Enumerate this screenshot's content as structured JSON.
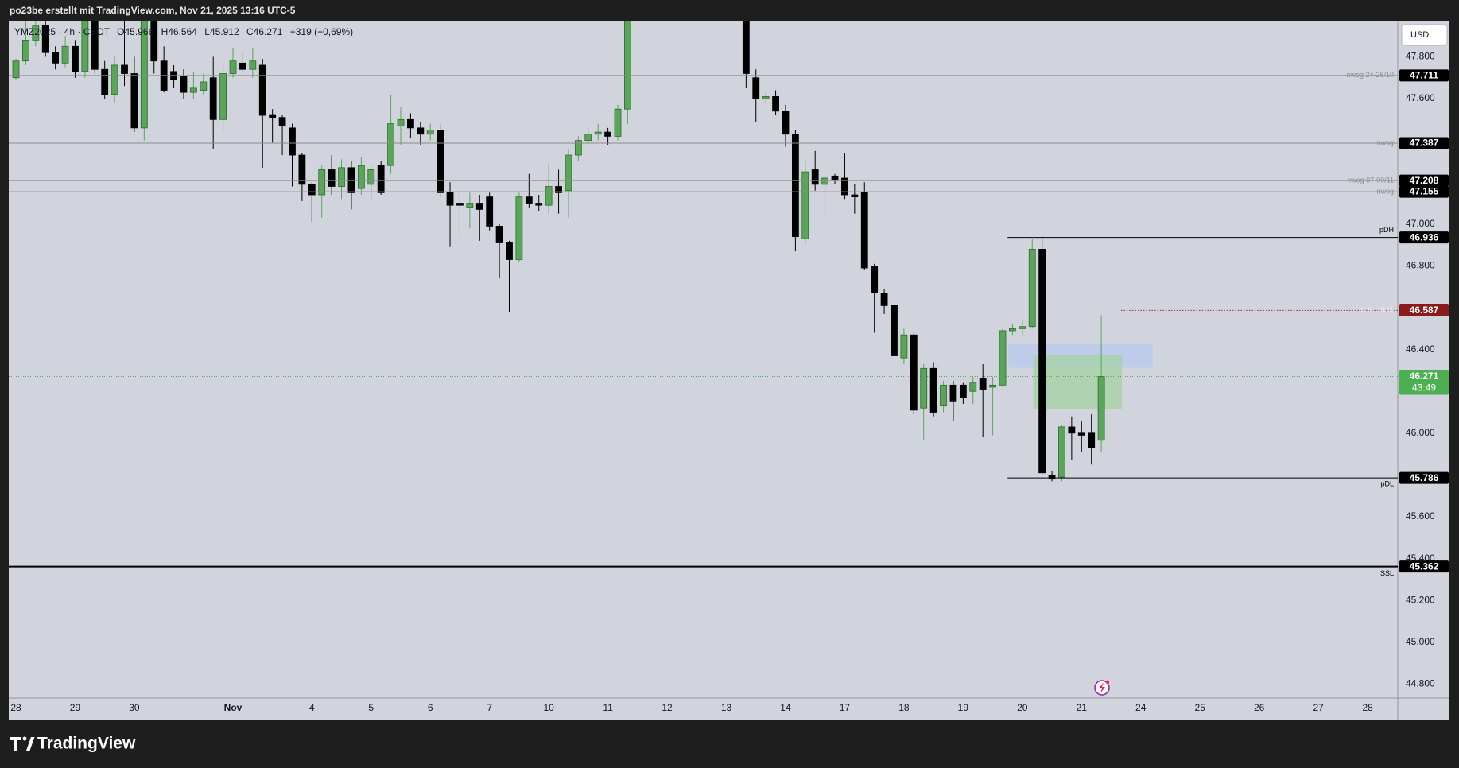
{
  "chart_data": {
    "type": "candlestick",
    "title": "po23be erstellt mit TradingView.com, Nov 21, 2025 13:16 UTC-5",
    "legend": {
      "symbol": "YMZ2025 · 4h · CBOT",
      "open": "O45.966",
      "high": "H46.564",
      "low": "L45.912",
      "close": "C46.271",
      "change": "+319 (+0,69%)"
    },
    "currency": "USD",
    "categories": [
      "28",
      null,
      null,
      null,
      null,
      null,
      "29",
      null,
      null,
      null,
      null,
      null,
      "30",
      null,
      null,
      null,
      null,
      null,
      null,
      null,
      null,
      null,
      "Nov",
      null,
      null,
      null,
      null,
      null,
      null,
      null,
      "4",
      null,
      null,
      null,
      null,
      null,
      "5",
      null,
      null,
      null,
      null,
      null,
      "6",
      null,
      null,
      null,
      null,
      null,
      "7",
      null,
      null,
      null,
      null,
      null,
      "10",
      null,
      null,
      null,
      null,
      null,
      "11",
      null,
      null,
      null,
      null,
      null,
      "12",
      null,
      null,
      null,
      null,
      null,
      "13",
      null,
      null,
      null,
      null,
      null,
      "14",
      null,
      null,
      null,
      null,
      null,
      "17",
      null,
      null,
      null,
      null,
      null,
      "18",
      null,
      null,
      null,
      null,
      null,
      "19",
      null,
      null,
      null,
      null,
      null,
      "20",
      null,
      null,
      null,
      null,
      null,
      "21",
      null,
      null,
      null,
      null,
      null,
      "24",
      null,
      null,
      null,
      null,
      null,
      "25",
      null,
      null,
      null,
      null,
      null,
      "26",
      null,
      null,
      null,
      null,
      null,
      "27",
      null,
      null,
      null,
      null,
      "28",
      null,
      null
    ],
    "open": [
      47.7,
      47.78,
      47.88,
      47.95,
      47.82,
      47.77,
      47.85,
      47.73,
      47.98,
      47.74,
      47.62,
      47.76,
      47.72,
      47.46,
      47.98,
      47.78,
      47.73,
      47.71,
      47.63,
      47.64,
      47.7,
      47.5,
      47.72,
      47.77,
      47.74,
      47.76,
      47.52,
      47.51,
      47.46,
      47.33,
      47.19,
      47.14,
      47.26,
      47.18,
      47.27,
      47.17,
      47.19,
      47.28,
      47.28,
      47.47,
      47.5,
      47.46,
      47.43,
      47.45,
      47.15,
      47.1,
      47.08,
      47.1,
      47.13,
      46.99,
      46.91,
      46.83,
      47.13,
      47.1,
      47.09,
      47.18,
      47.16,
      47.33,
      47.4,
      47.43,
      47.44,
      47.42,
      47.55,
      null,
      null,
      null,
      null,
      null,
      null,
      null,
      null,
      null,
      null,
      null,
      47.98,
      47.7,
      47.6,
      47.61,
      47.54,
      47.43,
      46.93,
      47.26,
      47.19,
      47.23,
      47.22,
      47.14,
      47.15,
      46.8,
      46.67,
      46.61,
      46.36,
      46.47,
      46.12,
      46.31,
      46.13,
      46.23,
      46.23,
      46.2,
      46.26,
      46.22,
      46.23,
      46.49,
      46.5,
      46.51,
      46.88,
      45.8,
      45.79,
      46.03,
      46.0,
      46.0,
      45.966,
      null,
      null,
      null,
      null,
      null,
      null,
      null,
      null,
      null,
      null,
      null,
      null,
      null,
      null,
      null,
      null,
      null,
      null,
      null,
      null,
      null,
      null,
      null,
      null,
      null,
      null,
      null,
      null,
      null
    ],
    "high": [
      47.79,
      47.97,
      47.97,
      47.97,
      47.85,
      47.9,
      47.88,
      48.0,
      48.0,
      47.78,
      47.8,
      47.98,
      47.8,
      48.0,
      48.0,
      47.85,
      47.76,
      47.74,
      47.73,
      47.72,
      47.8,
      47.76,
      47.84,
      47.83,
      47.84,
      47.79,
      47.55,
      47.52,
      47.48,
      47.34,
      47.2,
      47.28,
      47.33,
      47.31,
      47.3,
      47.32,
      47.28,
      47.3,
      47.62,
      47.56,
      47.53,
      47.49,
      47.48,
      47.48,
      47.2,
      47.15,
      47.15,
      47.14,
      47.15,
      47.0,
      46.92,
      47.15,
      47.24,
      47.14,
      47.29,
      47.26,
      47.36,
      47.42,
      47.46,
      47.48,
      47.46,
      47.57,
      48.0,
      null,
      null,
      null,
      null,
      null,
      null,
      null,
      null,
      null,
      null,
      null,
      48.0,
      47.74,
      47.63,
      47.64,
      47.57,
      47.45,
      47.3,
      47.35,
      47.23,
      47.24,
      47.34,
      47.19,
      47.2,
      46.81,
      46.69,
      46.62,
      46.5,
      46.48,
      46.33,
      46.34,
      46.25,
      46.25,
      46.24,
      46.27,
      46.33,
      46.27,
      46.5,
      46.52,
      46.54,
      46.93,
      46.94,
      45.82,
      46.04,
      46.08,
      46.06,
      46.09,
      46.564,
      null,
      null,
      null,
      null,
      null,
      null,
      null,
      null,
      null,
      null,
      null,
      null,
      null,
      null,
      null,
      null,
      null,
      null,
      null,
      null,
      null,
      null,
      null,
      null,
      null,
      null,
      null,
      null,
      null
    ],
    "low": [
      47.69,
      47.76,
      47.85,
      47.8,
      47.74,
      47.75,
      47.7,
      47.7,
      47.72,
      47.6,
      47.58,
      47.66,
      47.44,
      47.4,
      47.72,
      47.63,
      47.65,
      47.6,
      47.6,
      47.62,
      47.36,
      47.44,
      47.7,
      47.72,
      47.7,
      47.27,
      47.39,
      47.33,
      47.18,
      47.11,
      47.01,
      47.03,
      47.14,
      47.12,
      47.07,
      47.14,
      47.12,
      47.14,
      47.24,
      47.38,
      47.41,
      47.38,
      47.4,
      47.13,
      46.89,
      46.95,
      46.98,
      46.92,
      46.97,
      46.74,
      46.58,
      46.82,
      47.08,
      47.06,
      47.05,
      47.05,
      47.03,
      47.3,
      47.38,
      47.4,
      47.38,
      47.4,
      47.48,
      null,
      null,
      null,
      null,
      null,
      null,
      null,
      null,
      null,
      null,
      null,
      47.65,
      47.49,
      47.58,
      47.52,
      47.37,
      46.87,
      46.9,
      47.16,
      47.03,
      47.19,
      47.12,
      47.05,
      46.78,
      46.48,
      46.57,
      46.35,
      46.33,
      46.09,
      45.97,
      46.08,
      46.1,
      46.06,
      46.14,
      46.14,
      45.98,
      45.99,
      46.22,
      46.47,
      46.47,
      46.5,
      45.8,
      45.77,
      45.77,
      45.87,
      45.91,
      45.85,
      45.912,
      null,
      null,
      null,
      null,
      null,
      null,
      null,
      null,
      null,
      null,
      null,
      null,
      null,
      null,
      null,
      null,
      null,
      null,
      null,
      null,
      null,
      null,
      null,
      null,
      null,
      null,
      null,
      null,
      null
    ],
    "close": [
      47.78,
      47.88,
      47.95,
      47.82,
      47.77,
      47.85,
      47.73,
      47.98,
      47.74,
      47.62,
      47.76,
      47.72,
      47.46,
      47.98,
      47.78,
      47.64,
      47.69,
      47.63,
      47.65,
      47.68,
      47.5,
      47.72,
      47.78,
      47.74,
      47.78,
      47.52,
      47.51,
      47.47,
      47.33,
      47.19,
      47.14,
      47.26,
      47.18,
      47.27,
      47.15,
      47.28,
      47.26,
      47.15,
      47.48,
      47.5,
      47.46,
      47.43,
      47.45,
      47.15,
      47.09,
      47.09,
      47.1,
      47.07,
      46.99,
      46.91,
      46.83,
      47.13,
      47.1,
      47.09,
      47.18,
      47.15,
      47.33,
      47.4,
      47.43,
      47.44,
      47.42,
      47.55,
      47.98,
      null,
      null,
      null,
      null,
      null,
      null,
      null,
      null,
      null,
      null,
      null,
      47.72,
      47.6,
      47.61,
      47.54,
      47.43,
      46.94,
      47.25,
      47.19,
      47.22,
      47.21,
      47.14,
      47.13,
      46.79,
      46.67,
      46.61,
      46.37,
      46.47,
      46.11,
      46.31,
      46.1,
      46.23,
      46.15,
      46.17,
      46.24,
      46.21,
      46.23,
      46.49,
      46.5,
      46.51,
      46.88,
      45.81,
      45.78,
      46.03,
      46.0,
      45.99,
      45.93,
      46.271,
      null,
      null,
      null,
      null,
      null,
      null,
      null,
      null,
      null,
      null,
      null,
      null,
      null,
      null,
      null,
      null,
      null,
      null,
      null,
      null,
      null,
      null,
      null,
      null,
      null,
      null,
      null,
      null,
      null
    ],
    "up_color": "#5aa55a",
    "down_color": "#000000",
    "ylim": [
      44.733,
      47.969
    ],
    "yticks": [
      {
        "value": 47.8,
        "label": "47.800"
      },
      {
        "value": 47.6,
        "label": "47.600"
      },
      {
        "value": 47.0,
        "label": "47.000"
      },
      {
        "value": 46.8,
        "label": "46.800"
      },
      {
        "value": 46.4,
        "label": "46.400"
      },
      {
        "value": 46.0,
        "label": "46.000"
      },
      {
        "value": 45.6,
        "label": "45.600"
      },
      {
        "value": 45.4,
        "label": "45.400"
      },
      {
        "value": 45.2,
        "label": "45.200"
      },
      {
        "value": 45.0,
        "label": "45.000"
      },
      {
        "value": 44.8,
        "label": "44.800"
      }
    ],
    "levels": [
      {
        "label": "nwog 24-26/10",
        "value": 47.711,
        "color": "#8c8c8c",
        "box_color": "#000000",
        "style": "solid"
      },
      {
        "label": "nwog",
        "value": 47.387,
        "color": "#8c8c8c",
        "box_color": "#000000",
        "style": "solid"
      },
      {
        "label": "nwog 07-09/11",
        "value": 47.208,
        "color": "#8c8c8c",
        "box_color": "#000000",
        "style": "solid"
      },
      {
        "label": "nwog",
        "value": 47.155,
        "color": "#8c8c8c",
        "box_color": "#000000",
        "style": "solid"
      },
      {
        "label": "pDH",
        "value": 46.936,
        "color": "#000000",
        "box_color": "#000000",
        "style": "solid"
      },
      {
        "label": "C.E. 20/11",
        "value": 46.587,
        "color": "#b22222",
        "box_color": "#8b1a1a",
        "style": "dotted"
      },
      {
        "label": "pDL",
        "value": 45.786,
        "color": "#000000",
        "box_color": "#000000",
        "style": "solid"
      },
      {
        "label": "SSL",
        "value": 45.362,
        "color": "#000000",
        "box_color": "#000000",
        "style": "thick"
      }
    ],
    "current": {
      "value": 46.271,
      "countdown": "43:49",
      "color": "#4caf50"
    },
    "zones": [
      {
        "top": 46.424,
        "bottom": 46.313,
        "color": "#b7c8ee"
      },
      {
        "top": 46.376,
        "bottom": 46.113,
        "color": "#a3d3a3"
      }
    ]
  },
  "footer": {
    "brand": "TradingView"
  }
}
